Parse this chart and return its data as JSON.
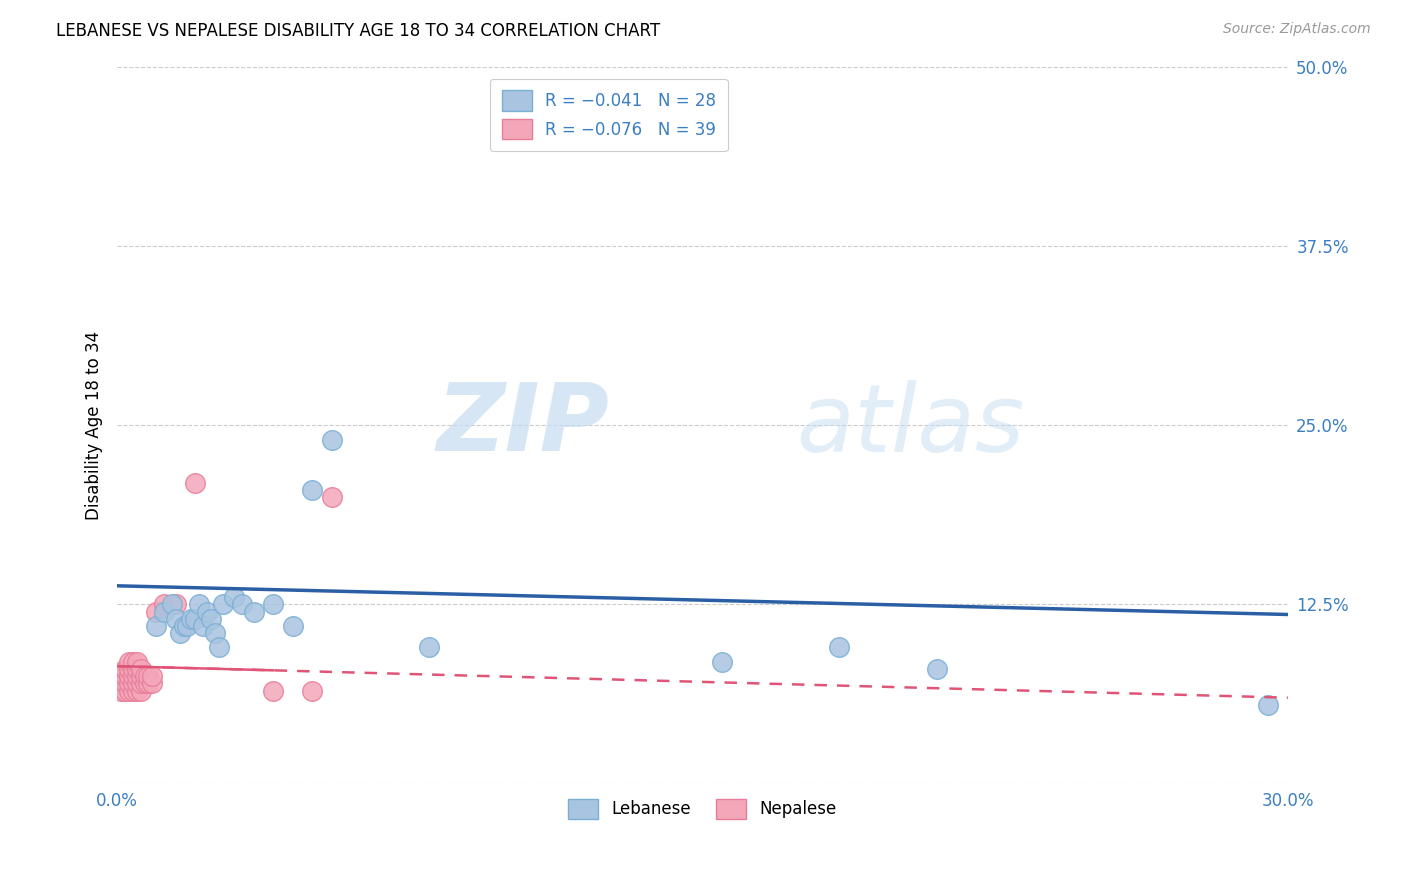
{
  "title": "LEBANESE VS NEPALESE DISABILITY AGE 18 TO 34 CORRELATION CHART",
  "source": "Source: ZipAtlas.com",
  "ylabel": "Disability Age 18 to 34",
  "xlim": [
    0.0,
    0.3
  ],
  "ylim": [
    0.0,
    0.5
  ],
  "xticks": [
    0.0,
    0.06,
    0.12,
    0.18,
    0.24,
    0.3
  ],
  "yticks": [
    0.0,
    0.125,
    0.25,
    0.375,
    0.5
  ],
  "xtick_labels": [
    "0.0%",
    "",
    "",
    "",
    "",
    "30.0%"
  ],
  "ytick_labels": [
    "",
    "12.5%",
    "25.0%",
    "37.5%",
    "50.0%"
  ],
  "lebanese_color": "#a8c4e0",
  "nepalese_color": "#f4a7b9",
  "lebanese_edge": "#7aafd4",
  "nepalese_edge": "#e87d9a",
  "trendline_lebanese_color": "#2b5fa5",
  "trendline_nepalese_color": "#e05577",
  "watermark_zip": "ZIP",
  "watermark_atlas": "atlas",
  "lebanese_x": [
    0.01,
    0.012,
    0.014,
    0.015,
    0.016,
    0.017,
    0.018,
    0.019,
    0.02,
    0.021,
    0.022,
    0.023,
    0.024,
    0.025,
    0.026,
    0.027,
    0.03,
    0.032,
    0.035,
    0.04,
    0.045,
    0.05,
    0.055,
    0.08,
    0.155,
    0.185,
    0.21,
    0.295
  ],
  "lebanese_y": [
    0.11,
    0.12,
    0.125,
    0.115,
    0.105,
    0.11,
    0.11,
    0.115,
    0.115,
    0.125,
    0.11,
    0.12,
    0.115,
    0.105,
    0.095,
    0.125,
    0.13,
    0.125,
    0.12,
    0.125,
    0.11,
    0.205,
    0.24,
    0.095,
    0.085,
    0.095,
    0.08,
    0.055
  ],
  "nepalese_x": [
    0.001,
    0.001,
    0.001,
    0.002,
    0.002,
    0.002,
    0.002,
    0.003,
    0.003,
    0.003,
    0.003,
    0.003,
    0.004,
    0.004,
    0.004,
    0.004,
    0.004,
    0.005,
    0.005,
    0.005,
    0.005,
    0.005,
    0.006,
    0.006,
    0.006,
    0.006,
    0.007,
    0.007,
    0.008,
    0.008,
    0.009,
    0.009,
    0.01,
    0.012,
    0.015,
    0.02,
    0.04,
    0.05,
    0.055
  ],
  "nepalese_y": [
    0.065,
    0.07,
    0.075,
    0.065,
    0.07,
    0.075,
    0.08,
    0.065,
    0.07,
    0.075,
    0.08,
    0.085,
    0.065,
    0.07,
    0.075,
    0.08,
    0.085,
    0.065,
    0.07,
    0.075,
    0.08,
    0.085,
    0.065,
    0.07,
    0.075,
    0.08,
    0.07,
    0.075,
    0.07,
    0.075,
    0.07,
    0.075,
    0.12,
    0.125,
    0.125,
    0.21,
    0.065,
    0.065,
    0.2
  ],
  "trendline_leb_start_y": 0.138,
  "trendline_leb_end_y": 0.118,
  "trendline_nep_start_y": 0.082,
  "trendline_nep_end_y": 0.06
}
